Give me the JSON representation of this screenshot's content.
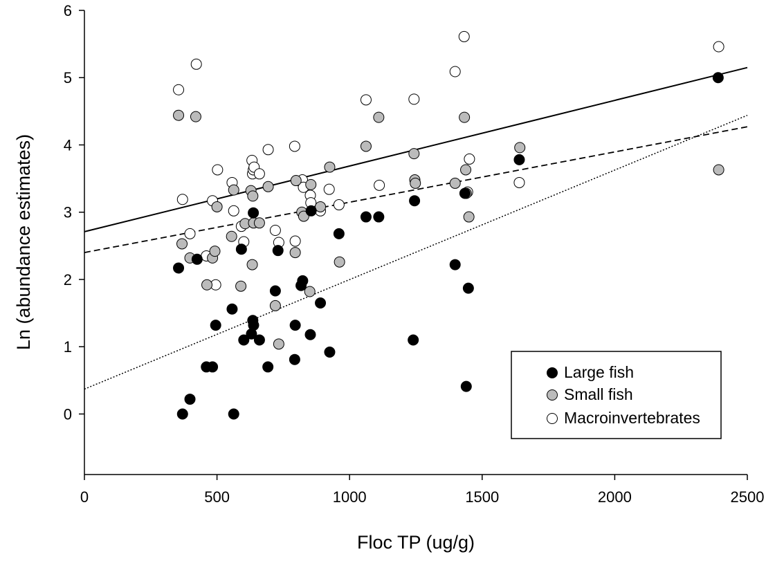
{
  "chart_data": {
    "type": "scatter",
    "title": "",
    "xlabel": "Floc TP (ug/g)",
    "ylabel": "Ln (abundance estimates)",
    "xlim": [
      0,
      2500
    ],
    "ylim": [
      -0.9,
      6
    ],
    "xticks": [
      0,
      500,
      1000,
      1500,
      2000,
      2500
    ],
    "yticks": [
      0,
      1,
      2,
      3,
      4,
      5,
      6
    ],
    "grid": false,
    "legend_position": "bottom-right",
    "series": [
      {
        "name": "Large fish",
        "marker_fill": "#000000",
        "line_style": "dotted",
        "trend": [
          [
            0,
            0.37
          ],
          [
            2500,
            4.44
          ]
        ],
        "points": [
          [
            355,
            2.17
          ],
          [
            370,
            0.0
          ],
          [
            398,
            0.22
          ],
          [
            425,
            2.3
          ],
          [
            460,
            0.7
          ],
          [
            483,
            0.7
          ],
          [
            495,
            1.32
          ],
          [
            557,
            1.56
          ],
          [
            563,
            0.0
          ],
          [
            592,
            2.45
          ],
          [
            601,
            1.1
          ],
          [
            630,
            1.19
          ],
          [
            635,
            1.39
          ],
          [
            637,
            2.99
          ],
          [
            638,
            1.32
          ],
          [
            660,
            1.1
          ],
          [
            692,
            0.7
          ],
          [
            720,
            1.83
          ],
          [
            730,
            2.43
          ],
          [
            793,
            0.81
          ],
          [
            795,
            1.32
          ],
          [
            817,
            1.91
          ],
          [
            823,
            1.98
          ],
          [
            852,
            1.18
          ],
          [
            855,
            3.02
          ],
          [
            890,
            1.65
          ],
          [
            925,
            0.92
          ],
          [
            960,
            2.68
          ],
          [
            1062,
            2.93
          ],
          [
            1110,
            2.93
          ],
          [
            1240,
            1.1
          ],
          [
            1245,
            3.17
          ],
          [
            1398,
            2.22
          ],
          [
            1435,
            3.28
          ],
          [
            1440,
            0.41
          ],
          [
            1448,
            1.87
          ],
          [
            1640,
            3.78
          ],
          [
            2390,
            5.0
          ]
        ]
      },
      {
        "name": "Small fish",
        "marker_fill": "#bbbbbb",
        "line_style": "dashed",
        "trend": [
          [
            0,
            2.4
          ],
          [
            2500,
            4.27
          ]
        ],
        "points": [
          [
            355,
            4.44
          ],
          [
            368,
            2.53
          ],
          [
            398,
            2.32
          ],
          [
            420,
            4.42
          ],
          [
            462,
            1.92
          ],
          [
            483,
            2.32
          ],
          [
            492,
            2.42
          ],
          [
            500,
            3.08
          ],
          [
            555,
            2.64
          ],
          [
            563,
            3.33
          ],
          [
            590,
            1.9
          ],
          [
            606,
            2.83
          ],
          [
            628,
            3.32
          ],
          [
            633,
            2.22
          ],
          [
            635,
            3.24
          ],
          [
            638,
            2.84
          ],
          [
            660,
            2.84
          ],
          [
            693,
            3.38
          ],
          [
            720,
            1.61
          ],
          [
            733,
            1.04
          ],
          [
            795,
            2.4
          ],
          [
            798,
            3.47
          ],
          [
            820,
            3.0
          ],
          [
            827,
            2.94
          ],
          [
            850,
            1.82
          ],
          [
            854,
            3.41
          ],
          [
            890,
            3.08
          ],
          [
            925,
            3.67
          ],
          [
            962,
            2.26
          ],
          [
            1062,
            3.98
          ],
          [
            1110,
            4.41
          ],
          [
            1243,
            3.87
          ],
          [
            1246,
            3.48
          ],
          [
            1248,
            3.43
          ],
          [
            1398,
            3.43
          ],
          [
            1433,
            4.41
          ],
          [
            1438,
            3.63
          ],
          [
            1440,
            3.28
          ],
          [
            1450,
            2.93
          ],
          [
            1642,
            3.96
          ],
          [
            2392,
            3.63
          ]
        ]
      },
      {
        "name": "Macroinvertebrates",
        "marker_fill": "#ffffff",
        "line_style": "solid",
        "trend": [
          [
            0,
            2.71
          ],
          [
            2500,
            5.15
          ]
        ],
        "points": [
          [
            355,
            4.82
          ],
          [
            370,
            3.19
          ],
          [
            398,
            2.68
          ],
          [
            422,
            5.2
          ],
          [
            460,
            2.35
          ],
          [
            483,
            3.17
          ],
          [
            495,
            1.92
          ],
          [
            502,
            3.63
          ],
          [
            557,
            3.44
          ],
          [
            563,
            3.02
          ],
          [
            592,
            2.79
          ],
          [
            601,
            2.56
          ],
          [
            632,
            3.77
          ],
          [
            634,
            3.57
          ],
          [
            637,
            3.63
          ],
          [
            640,
            3.67
          ],
          [
            660,
            3.57
          ],
          [
            693,
            3.93
          ],
          [
            720,
            2.73
          ],
          [
            733,
            2.55
          ],
          [
            793,
            3.98
          ],
          [
            795,
            2.57
          ],
          [
            818,
            3.45
          ],
          [
            822,
            3.48
          ],
          [
            826,
            3.37
          ],
          [
            852,
            3.25
          ],
          [
            854,
            3.14
          ],
          [
            890,
            3.02
          ],
          [
            923,
            3.34
          ],
          [
            960,
            3.11
          ],
          [
            1062,
            4.67
          ],
          [
            1112,
            3.4
          ],
          [
            1243,
            4.68
          ],
          [
            1398,
            5.09
          ],
          [
            1432,
            5.61
          ],
          [
            1445,
            3.3
          ],
          [
            1452,
            3.79
          ],
          [
            1640,
            3.44
          ],
          [
            2392,
            5.46
          ]
        ]
      }
    ]
  }
}
